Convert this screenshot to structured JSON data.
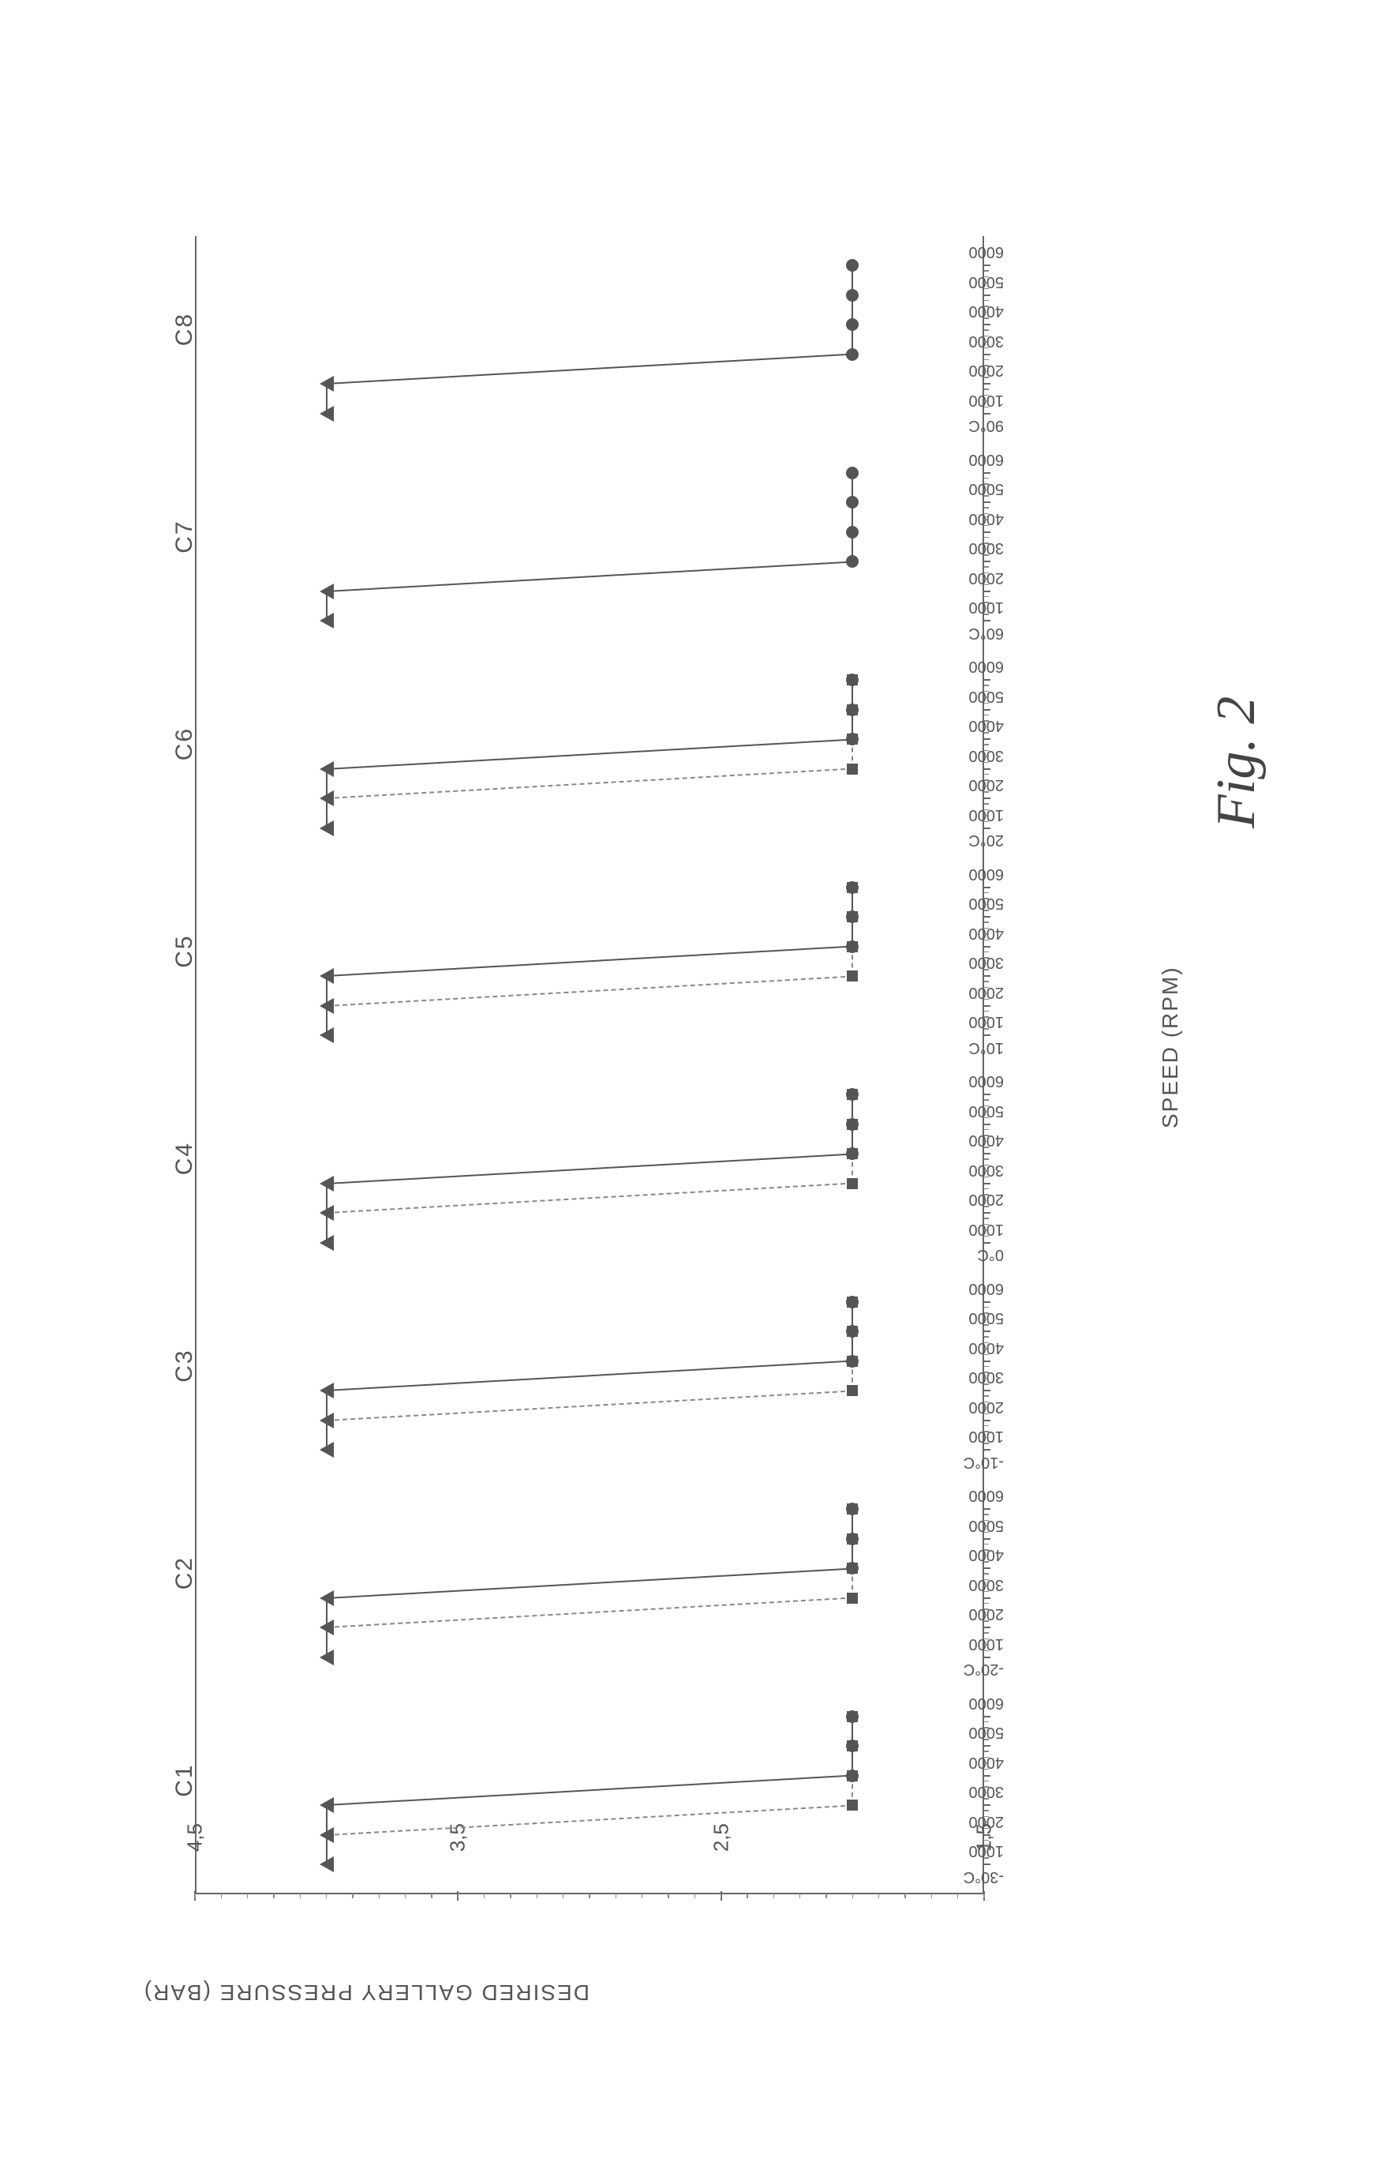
{
  "chart": {
    "type": "line-scatter-multipanel",
    "y_axis": {
      "label": "DESIRED GALLERY PRESSURE (BAR)",
      "min": 1.5,
      "max": 4.5,
      "major_ticks": [
        1.5,
        2.5,
        3.5,
        4.5
      ],
      "minor_step": 0.1
    },
    "x_axis": {
      "label": "SPEED (RPM)",
      "speed_ticks": [
        1000,
        2000,
        3000,
        4000,
        5000,
        6000
      ]
    },
    "colors": {
      "axis": "#666666",
      "text": "#555555",
      "marker": "#555555",
      "line_solid": "#555555",
      "line_dashed": "#888888",
      "background": "#ffffff"
    },
    "fontsize": {
      "axis_label": 28,
      "tick": 22,
      "group_label": 30,
      "caption": 70
    },
    "groups": [
      {
        "label": "C1",
        "temp": "-30°C",
        "series_solid": [
          [
            1000,
            4.0
          ],
          [
            2000,
            4.0
          ],
          [
            3000,
            4.0
          ],
          [
            4000,
            2.0
          ],
          [
            5000,
            2.0
          ],
          [
            6000,
            2.0
          ]
        ],
        "series_dashed": [
          [
            1000,
            4.0
          ],
          [
            2000,
            4.0
          ],
          [
            3000,
            2.0
          ],
          [
            4000,
            2.0
          ],
          [
            5000,
            2.0
          ],
          [
            6000,
            2.0
          ]
        ]
      },
      {
        "label": "C2",
        "temp": "-20°C",
        "series_solid": [
          [
            1000,
            4.0
          ],
          [
            2000,
            4.0
          ],
          [
            3000,
            4.0
          ],
          [
            4000,
            2.0
          ],
          [
            5000,
            2.0
          ],
          [
            6000,
            2.0
          ]
        ],
        "series_dashed": [
          [
            1000,
            4.0
          ],
          [
            2000,
            4.0
          ],
          [
            3000,
            2.0
          ],
          [
            4000,
            2.0
          ],
          [
            5000,
            2.0
          ],
          [
            6000,
            2.0
          ]
        ]
      },
      {
        "label": "C3",
        "temp": "-10°C",
        "series_solid": [
          [
            1000,
            4.0
          ],
          [
            2000,
            4.0
          ],
          [
            3000,
            4.0
          ],
          [
            4000,
            2.0
          ],
          [
            5000,
            2.0
          ],
          [
            6000,
            2.0
          ]
        ],
        "series_dashed": [
          [
            1000,
            4.0
          ],
          [
            2000,
            4.0
          ],
          [
            3000,
            2.0
          ],
          [
            4000,
            2.0
          ],
          [
            5000,
            2.0
          ],
          [
            6000,
            2.0
          ]
        ]
      },
      {
        "label": "C4",
        "temp": "0°C",
        "series_solid": [
          [
            1000,
            4.0
          ],
          [
            2000,
            4.0
          ],
          [
            3000,
            4.0
          ],
          [
            4000,
            2.0
          ],
          [
            5000,
            2.0
          ],
          [
            6000,
            2.0
          ]
        ],
        "series_dashed": [
          [
            1000,
            4.0
          ],
          [
            2000,
            4.0
          ],
          [
            3000,
            2.0
          ],
          [
            4000,
            2.0
          ],
          [
            5000,
            2.0
          ],
          [
            6000,
            2.0
          ]
        ]
      },
      {
        "label": "C5",
        "temp": "10°C",
        "series_solid": [
          [
            1000,
            4.0
          ],
          [
            2000,
            4.0
          ],
          [
            3000,
            4.0
          ],
          [
            4000,
            2.0
          ],
          [
            5000,
            2.0
          ],
          [
            6000,
            2.0
          ]
        ],
        "series_dashed": [
          [
            1000,
            4.0
          ],
          [
            2000,
            4.0
          ],
          [
            3000,
            2.0
          ],
          [
            4000,
            2.0
          ],
          [
            5000,
            2.0
          ],
          [
            6000,
            2.0
          ]
        ]
      },
      {
        "label": "C6",
        "temp": "20°C",
        "series_solid": [
          [
            1000,
            4.0
          ],
          [
            2000,
            4.0
          ],
          [
            3000,
            4.0
          ],
          [
            4000,
            2.0
          ],
          [
            5000,
            2.0
          ],
          [
            6000,
            2.0
          ]
        ],
        "series_dashed": [
          [
            1000,
            4.0
          ],
          [
            2000,
            4.0
          ],
          [
            3000,
            2.0
          ],
          [
            4000,
            2.0
          ],
          [
            5000,
            2.0
          ],
          [
            6000,
            2.0
          ]
        ]
      },
      {
        "label": "C7",
        "temp": "60°C",
        "series_solid": [
          [
            1000,
            4.0
          ],
          [
            2000,
            4.0
          ],
          [
            3000,
            2.0
          ],
          [
            4000,
            2.0
          ],
          [
            5000,
            2.0
          ],
          [
            6000,
            2.0
          ]
        ],
        "series_dashed": null
      },
      {
        "label": "C8",
        "temp": "90°C",
        "series_solid": [
          [
            1000,
            4.0
          ],
          [
            2000,
            4.0
          ],
          [
            3000,
            2.0
          ],
          [
            4000,
            2.0
          ],
          [
            5000,
            2.0
          ],
          [
            6000,
            2.0
          ]
        ],
        "series_dashed": null
      }
    ],
    "caption": "Fig. 2"
  }
}
